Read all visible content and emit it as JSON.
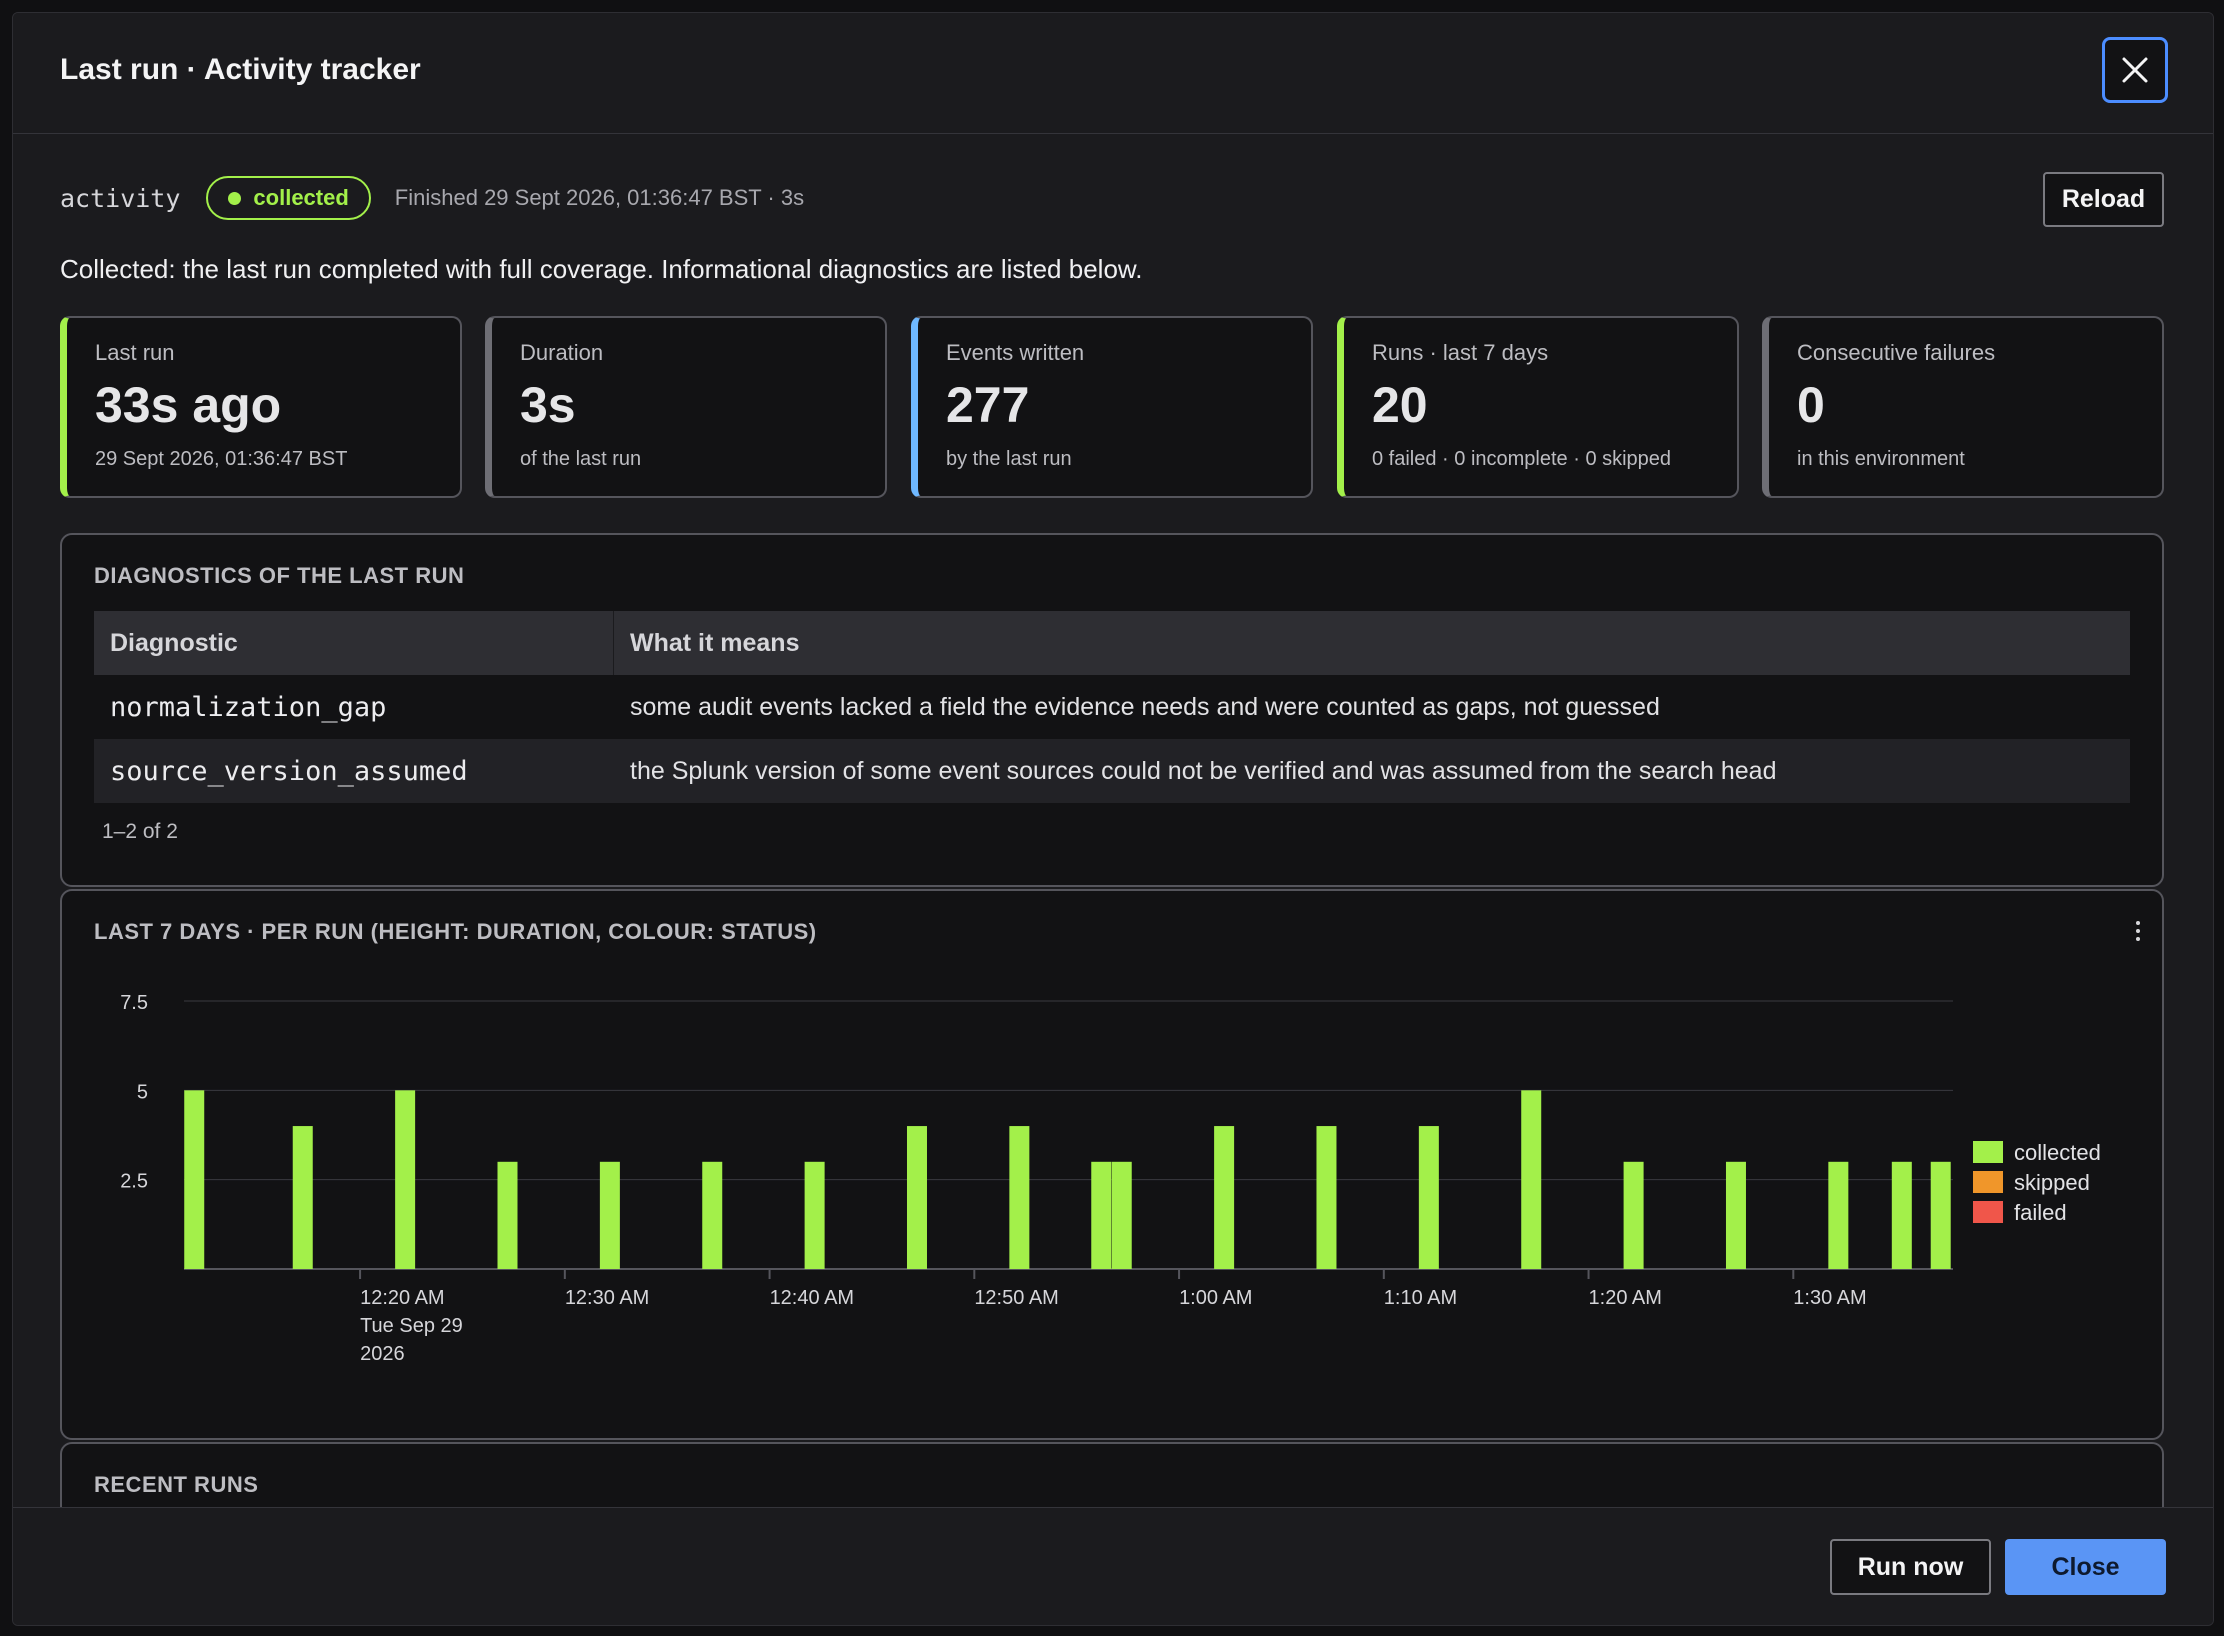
{
  "dialog": {
    "title": "Last run · Activity tracker"
  },
  "meta": {
    "id": "activity",
    "status": "collected",
    "finished": "Finished 29 Sept 2026, 01:36:47 BST · 3s",
    "reload_label": "Reload"
  },
  "summary": "Collected: the last run completed with full coverage. Informational diagnostics are listed below.",
  "stats": [
    {
      "label": "Last run",
      "value": "33s ago",
      "sub": "29 Sept 2026, 01:36:47 BST",
      "accent": "#a3f04a"
    },
    {
      "label": "Duration",
      "value": "3s",
      "sub": "of the last run",
      "accent": "#6e6e75"
    },
    {
      "label": "Events written",
      "value": "277",
      "sub": "by the last run",
      "accent": "#6fb8ff"
    },
    {
      "label": "Runs · last 7 days",
      "value": "20",
      "sub": "0 failed · 0 incomplete · 0 skipped",
      "accent": "#a3f04a"
    },
    {
      "label": "Consecutive failures",
      "value": "0",
      "sub": "in this environment",
      "accent": "#6e6e75"
    }
  ],
  "diagnostics": {
    "title": "Diagnostics of the last run",
    "columns": [
      "Diagnostic",
      "What it means"
    ],
    "rows": [
      {
        "name": "normalization_gap",
        "meaning": "some audit events lacked a field the evidence needs and were counted as gaps, not guessed"
      },
      {
        "name": "source_version_assumed",
        "meaning": "the Splunk version of some event sources could not be verified and was assumed from the search head"
      }
    ],
    "pager": "1–2 of 2"
  },
  "chart_panel": {
    "title": "Last 7 days · per run (height: duration, colour: status)"
  },
  "chart_data": {
    "type": "bar",
    "x_axis": "time",
    "x_ticks": [
      "12:20 AM",
      "12:30 AM",
      "12:40 AM",
      "12:50 AM",
      "1:00 AM",
      "1:10 AM",
      "1:20 AM",
      "1:30 AM"
    ],
    "x_tick_minutes": [
      20,
      30,
      40,
      50,
      60,
      70,
      80,
      90
    ],
    "first_tick_date": [
      "Tue Sep 29",
      "2026"
    ],
    "x_range_minutes": [
      11.4,
      97.8
    ],
    "y_ticks": [
      "7.5",
      "5",
      "2.5"
    ],
    "y_tick_values": [
      7.5,
      5,
      2.5
    ],
    "ylim": [
      0,
      7.5
    ],
    "grid": true,
    "legend_position": "right",
    "legend": [
      {
        "name": "collected",
        "color": "#a3f04a"
      },
      {
        "name": "skipped",
        "color": "#f0962a"
      },
      {
        "name": "failed",
        "color": "#f0564a"
      }
    ],
    "bars": [
      {
        "minute": 11.9,
        "value": 5,
        "status": "collected"
      },
      {
        "minute": 17.2,
        "value": 4,
        "status": "collected"
      },
      {
        "minute": 22.2,
        "value": 5,
        "status": "collected"
      },
      {
        "minute": 27.2,
        "value": 3,
        "status": "collected"
      },
      {
        "minute": 32.2,
        "value": 3,
        "status": "collected"
      },
      {
        "minute": 37.2,
        "value": 3,
        "status": "collected"
      },
      {
        "minute": 42.2,
        "value": 3,
        "status": "collected"
      },
      {
        "minute": 47.2,
        "value": 4,
        "status": "collected"
      },
      {
        "minute": 52.2,
        "value": 4,
        "status": "collected"
      },
      {
        "minute": 56.2,
        "value": 3,
        "status": "collected"
      },
      {
        "minute": 57.2,
        "value": 3,
        "status": "collected"
      },
      {
        "minute": 62.2,
        "value": 4,
        "status": "collected"
      },
      {
        "minute": 67.2,
        "value": 4,
        "status": "collected"
      },
      {
        "minute": 72.2,
        "value": 4,
        "status": "collected"
      },
      {
        "minute": 77.2,
        "value": 5,
        "status": "collected"
      },
      {
        "minute": 82.2,
        "value": 3,
        "status": "collected"
      },
      {
        "minute": 87.2,
        "value": 3,
        "status": "collected"
      },
      {
        "minute": 92.2,
        "value": 3,
        "status": "collected"
      },
      {
        "minute": 95.3,
        "value": 3,
        "status": "collected"
      },
      {
        "minute": 97.2,
        "value": 3,
        "status": "collected"
      }
    ]
  },
  "recent_runs": {
    "title": "Recent runs"
  },
  "footer": {
    "run_now_label": "Run now",
    "close_label": "Close"
  },
  "colors": {
    "accent_blue": "#5a95f5",
    "collected": "#a3f04a"
  },
  "icons": {
    "close": "close-icon",
    "kebab": "kebab-menu-icon",
    "status_dot": "status-dot-icon"
  }
}
